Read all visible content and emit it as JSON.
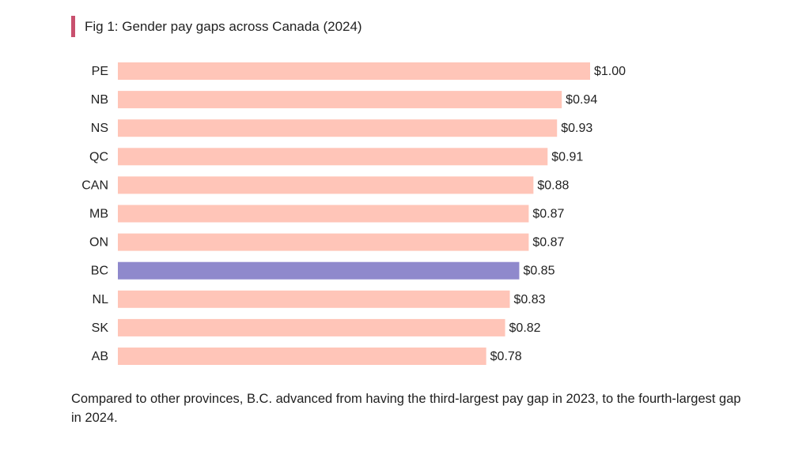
{
  "chart_data": {
    "type": "bar",
    "orientation": "horizontal",
    "title": "Fig 1: Gender pay gaps across Canada (2024)",
    "categories": [
      "PE",
      "NB",
      "NS",
      "QC",
      "CAN",
      "MB",
      "ON",
      "BC",
      "NL",
      "SK",
      "AB"
    ],
    "values": [
      1.0,
      0.94,
      0.93,
      0.91,
      0.88,
      0.87,
      0.87,
      0.85,
      0.83,
      0.82,
      0.78
    ],
    "value_labels": [
      "$1.00",
      "$0.94",
      "$0.93",
      "$0.91",
      "$0.88",
      "$0.87",
      "$0.87",
      "$0.85",
      "$0.83",
      "$0.82",
      "$0.78"
    ],
    "highlight": "BC",
    "xlim": [
      0,
      1.0
    ],
    "grid": false,
    "xlabel": "",
    "ylabel": ""
  },
  "colors": {
    "bar": "#ffc5b8",
    "highlight_bar": "#8f89cc",
    "title_accent": "#c8506e"
  },
  "caption": "Compared to other provinces, B.C. advanced from having the third-largest pay gap in 2023, to the fourth-largest gap in 2024."
}
